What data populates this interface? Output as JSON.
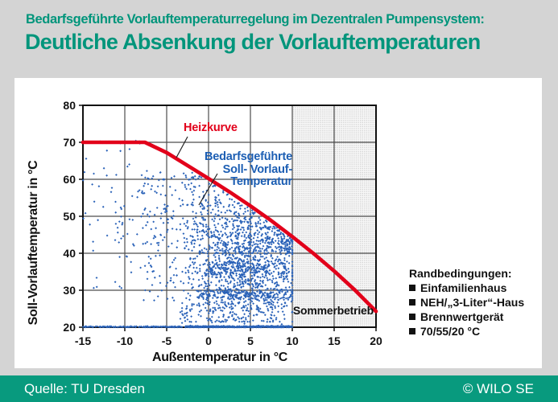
{
  "header": {
    "line1": "Bedarfsgeführte Vorlauftemperaturregelung im Dezentralen Pumpensystem:",
    "line2": "Deutliche Absenkung der Vorlauftemperaturen"
  },
  "footer": {
    "source": "Quelle: TU Dresden",
    "copyright": "© WILO SE"
  },
  "colors": {
    "bg": "#d4d4d4",
    "panel": "#ffffff",
    "heading": "#00957b",
    "footer_bar": "#089a7e",
    "footer_text": "#ffffff",
    "text": "#111111",
    "grid": "#4d4d4d",
    "axis": "#111111",
    "red": "#e2001a",
    "blue": "#2a62b8",
    "label_blue": "#1c5eb3",
    "shade_bg": "#f7f7f7",
    "shade_dot": "#d2d2d2"
  },
  "chart_data": {
    "type": "scatter",
    "title": "",
    "xlabel": "Außentemperatur in °C",
    "ylabel": "Soll-Vorlauftemperatur in °C",
    "xlim": [
      -15,
      20
    ],
    "ylim": [
      20,
      80
    ],
    "xticks": [
      -15,
      -10,
      -5,
      0,
      5,
      10,
      15,
      20
    ],
    "yticks": [
      20,
      30,
      40,
      50,
      60,
      70,
      80
    ],
    "grid": true,
    "legend_position": "none",
    "summer_region": {
      "label": "Sommerbetrieb",
      "x_start": 10,
      "x_end": 20
    },
    "annotations": {
      "heizkurve_label": "Heizkurve",
      "scatter_label_lines": [
        "Bedarfsgeführte",
        "Soll- Vorlauf-",
        "Temperatur"
      ]
    },
    "heizkurve": {
      "name": "Heizkurve",
      "type": "line",
      "points": [
        [
          -15,
          70
        ],
        [
          -7.6,
          70
        ],
        [
          -5,
          67.2
        ],
        [
          -2.5,
          63.7
        ],
        [
          0,
          60.2
        ],
        [
          2.5,
          56.6
        ],
        [
          5,
          52.8
        ],
        [
          7.5,
          48.8
        ],
        [
          10,
          44.5
        ],
        [
          12.5,
          40
        ],
        [
          15,
          35.2
        ],
        [
          17.5,
          30
        ],
        [
          20,
          24.3
        ]
      ]
    },
    "scatter": {
      "name": "Bedarfsgeführte Soll-Vorlauf-Temperatur",
      "type": "scatter",
      "seed": 20120613,
      "point_size": 1.4,
      "clusters": [
        {
          "name": "baseline-solid",
          "count": 600,
          "x": {
            "dist": "uniform",
            "min": -2.6,
            "max": 10
          },
          "y": {
            "dist": "normal",
            "mean": 20.12,
            "sd": 0.1,
            "min": 20,
            "max": 20.5
          }
        },
        {
          "name": "baseline-sparse",
          "count": 150,
          "x": {
            "dist": "uniform",
            "min": -15,
            "max": -2.6
          },
          "y": {
            "dist": "normal",
            "mean": 20.1,
            "sd": 0.08,
            "min": 20,
            "max": 20.4
          }
        },
        {
          "name": "seventy-line",
          "count": 26,
          "clip": false,
          "x": {
            "dist": "uniform",
            "min": -14.6,
            "max": -7.7
          },
          "y": {
            "dist": "normal",
            "mean": 70,
            "sd": 0.2,
            "min": 69.4,
            "max": 70.5
          }
        },
        {
          "name": "main-core",
          "count": 850,
          "x": {
            "dist": "normal",
            "mean": 4.3,
            "sd": 3.5,
            "min": -4.5,
            "max": 10
          },
          "y": {
            "dist": "normal",
            "mean": 36,
            "sd": 7,
            "min": 21.5,
            "max": 66
          }
        },
        {
          "name": "band-29",
          "count": 180,
          "x": {
            "dist": "uniform",
            "min": -1.5,
            "max": 10
          },
          "y": {
            "dist": "normal",
            "mean": 28.7,
            "sd": 0.9,
            "min": 26.5,
            "max": 31
          }
        },
        {
          "name": "band-36",
          "count": 200,
          "x": {
            "dist": "uniform",
            "min": -0.5,
            "max": 9.7
          },
          "y": {
            "dist": "normal",
            "mean": 35.8,
            "sd": 1.4,
            "min": 33,
            "max": 39
          }
        },
        {
          "name": "upper-wedge",
          "count": 430,
          "x": {
            "dist": "uniform",
            "min": -3,
            "max": 10
          },
          "y": {
            "dist": "under-curve",
            "min": 40,
            "offset": 0.7
          }
        },
        {
          "name": "left-mid",
          "count": 170,
          "x": {
            "dist": "uniform",
            "min": -8.5,
            "max": -1.6
          },
          "y": {
            "dist": "uniform",
            "min": 27,
            "max": 63
          }
        },
        {
          "name": "far-left",
          "count": 60,
          "x": {
            "dist": "uniform",
            "min": -15,
            "max": -8.5
          },
          "y": {
            "dist": "uniform",
            "min": 30,
            "max": 69
          }
        },
        {
          "name": "low-scatter",
          "count": 130,
          "x": {
            "dist": "uniform",
            "min": -3.5,
            "max": 10
          },
          "y": {
            "dist": "uniform",
            "min": 20.7,
            "max": 26.8
          }
        }
      ]
    },
    "conditions": {
      "title": "Randbedingungen:",
      "items": [
        "Einfamilienhaus",
        "NEH/„3-Liter“-Haus",
        "Brennwertgerät",
        "70/55/20 °C"
      ]
    }
  }
}
